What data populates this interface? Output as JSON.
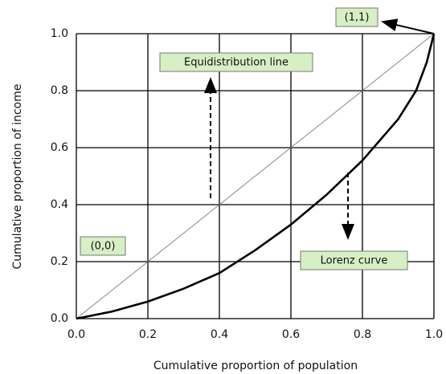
{
  "chart_data": {
    "type": "line",
    "x_label": "Cumulative proportion of population",
    "y_label": "Cumulative proportion of income",
    "xlim": [
      0,
      1
    ],
    "ylim": [
      0,
      1
    ],
    "xticks": [
      {
        "value": 0,
        "label": "0.0"
      },
      0.2,
      0.4,
      0.6,
      0.8,
      {
        "value": 1,
        "label": "1.0"
      }
    ],
    "yticks": [
      {
        "value": 0,
        "label": "0.0"
      },
      0.2,
      0.4,
      0.6,
      0.8,
      {
        "value": 1,
        "label": "1.0"
      }
    ],
    "grid": true,
    "series": [
      {
        "color": "#888888",
        "x": [
          0,
          1
        ],
        "values": [
          0,
          1
        ]
      },
      {
        "color": "#000000",
        "x": [
          0,
          0.1,
          0.2,
          0.3,
          0.4,
          0.5,
          0.6,
          0.7,
          0.8,
          0.9,
          0.95,
          0.98,
          1
        ],
        "values": [
          0,
          0.025,
          0.06,
          0.105,
          0.16,
          0.24,
          0.33,
          0.435,
          0.555,
          0.7,
          0.8,
          0.9,
          1
        ]
      }
    ],
    "annotations": [
      "(1,1)",
      "Equidistribution line",
      "(0,0)",
      "Lorenz curve"
    ]
  }
}
